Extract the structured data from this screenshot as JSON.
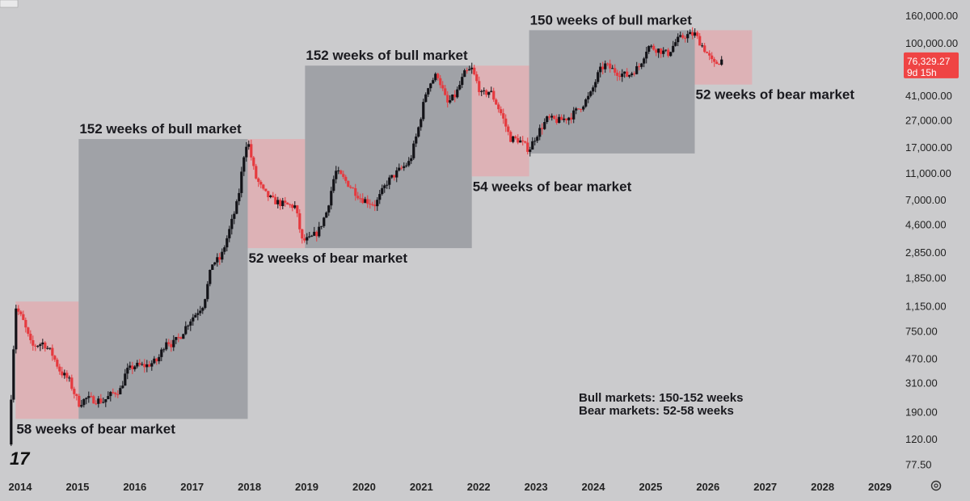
{
  "chart_data": {
    "type": "candlestick",
    "title": "",
    "xlabel": "",
    "ylabel": "",
    "scale": "log",
    "x_range": [
      2014.0,
      2029.8
    ],
    "y_range": [
      70,
      160000
    ],
    "x_ticks": [
      "2014",
      "2015",
      "2016",
      "2017",
      "2018",
      "2019",
      "2020",
      "2021",
      "2022",
      "2023",
      "2024",
      "2025",
      "2026",
      "2027",
      "2028",
      "2029"
    ],
    "y_ticks": [
      {
        "label": "160,000.00",
        "value": 160000
      },
      {
        "label": "100,000.00",
        "value": 100000
      },
      {
        "label": "41,000.00",
        "value": 41000
      },
      {
        "label": "27,000.00",
        "value": 27000
      },
      {
        "label": "17,000.00",
        "value": 17000
      },
      {
        "label": "11,000.00",
        "value": 11000
      },
      {
        "label": "7,000.00",
        "value": 7000
      },
      {
        "label": "4,600.00",
        "value": 4600
      },
      {
        "label": "2,850.00",
        "value": 2850
      },
      {
        "label": "1,850.00",
        "value": 1850
      },
      {
        "label": "1,150.00",
        "value": 1150
      },
      {
        "label": "750.00",
        "value": 750
      },
      {
        "label": "470.00",
        "value": 470
      },
      {
        "label": "310.00",
        "value": 310
      },
      {
        "label": "190.00",
        "value": 190
      },
      {
        "label": "120.00",
        "value": 120
      },
      {
        "label": "77.50",
        "value": 77.5
      }
    ],
    "price_badge": {
      "price": "76,329.27",
      "countdown": "9d 15h",
      "value": 76329.27
    },
    "market_phases": [
      {
        "type": "bear",
        "start": 2013.92,
        "end": 2015.02,
        "low": 170,
        "high": 1250,
        "label": "58 weeks of bear market",
        "label_pos": "below"
      },
      {
        "type": "bull",
        "start": 2015.02,
        "end": 2017.97,
        "low": 170,
        "high": 19800,
        "label": "152 weeks of bull market",
        "label_pos": "above"
      },
      {
        "type": "bear",
        "start": 2017.97,
        "end": 2018.97,
        "low": 3100,
        "high": 19800,
        "label": "52 weeks of bear market",
        "label_pos": "below"
      },
      {
        "type": "bull",
        "start": 2018.97,
        "end": 2021.88,
        "low": 3100,
        "high": 69000,
        "label": "152 weeks of bull market",
        "label_pos": "above"
      },
      {
        "type": "bear",
        "start": 2021.88,
        "end": 2022.88,
        "low": 10500,
        "high": 69000,
        "label": "54 weeks of bear market",
        "label_pos": "below"
      },
      {
        "type": "bull",
        "start": 2022.88,
        "end": 2025.77,
        "low": 15500,
        "high": 126000,
        "label": "150 weeks of bull market",
        "label_pos": "above"
      },
      {
        "type": "bear",
        "start": 2025.77,
        "end": 2026.77,
        "low": 50000,
        "high": 126000,
        "label": "52 weeks of bear market",
        "label_pos": "below"
      }
    ],
    "price_path": [
      [
        2013.8,
        110
      ],
      [
        2013.92,
        1150
      ],
      [
        2014.05,
        900
      ],
      [
        2014.2,
        580
      ],
      [
        2014.4,
        620
      ],
      [
        2014.55,
        520
      ],
      [
        2014.7,
        380
      ],
      [
        2014.85,
        330
      ],
      [
        2015.02,
        220
      ],
      [
        2015.15,
        240
      ],
      [
        2015.3,
        235
      ],
      [
        2015.45,
        230
      ],
      [
        2015.6,
        260
      ],
      [
        2015.75,
        280
      ],
      [
        2015.85,
        380
      ],
      [
        2016.0,
        420
      ],
      [
        2016.2,
        420
      ],
      [
        2016.4,
        460
      ],
      [
        2016.55,
        650
      ],
      [
        2016.65,
        600
      ],
      [
        2016.8,
        700
      ],
      [
        2016.95,
        900
      ],
      [
        2017.05,
        1000
      ],
      [
        2017.2,
        1200
      ],
      [
        2017.35,
        2400
      ],
      [
        2017.5,
        2600
      ],
      [
        2017.65,
        4200
      ],
      [
        2017.8,
        7000
      ],
      [
        2017.92,
        17000
      ],
      [
        2017.97,
        19500
      ],
      [
        2018.1,
        10500
      ],
      [
        2018.25,
        8000
      ],
      [
        2018.4,
        7000
      ],
      [
        2018.6,
        6500
      ],
      [
        2018.8,
        6300
      ],
      [
        2018.92,
        3500
      ],
      [
        2019.05,
        3600
      ],
      [
        2019.2,
        4100
      ],
      [
        2019.35,
        5800
      ],
      [
        2019.5,
        11500
      ],
      [
        2019.65,
        10000
      ],
      [
        2019.8,
        8500
      ],
      [
        2019.95,
        7200
      ],
      [
        2020.2,
        6500
      ],
      [
        2020.4,
        9500
      ],
      [
        2020.6,
        11500
      ],
      [
        2020.8,
        13500
      ],
      [
        2020.95,
        24000
      ],
      [
        2021.1,
        48000
      ],
      [
        2021.28,
        60000
      ],
      [
        2021.45,
        36000
      ],
      [
        2021.6,
        42000
      ],
      [
        2021.75,
        60000
      ],
      [
        2021.88,
        65000
      ],
      [
        2022.05,
        42000
      ],
      [
        2022.2,
        45000
      ],
      [
        2022.4,
        30000
      ],
      [
        2022.55,
        20000
      ],
      [
        2022.7,
        19500
      ],
      [
        2022.88,
        16500
      ],
      [
        2023.0,
        21000
      ],
      [
        2023.2,
        28000
      ],
      [
        2023.4,
        27000
      ],
      [
        2023.6,
        29000
      ],
      [
        2023.8,
        35000
      ],
      [
        2023.95,
        42000
      ],
      [
        2024.1,
        62000
      ],
      [
        2024.2,
        70000
      ],
      [
        2024.4,
        62000
      ],
      [
        2024.6,
        58000
      ],
      [
        2024.8,
        68000
      ],
      [
        2024.95,
        96000
      ],
      [
        2025.15,
        90000
      ],
      [
        2025.3,
        84000
      ],
      [
        2025.45,
        105000
      ],
      [
        2025.6,
        115000
      ],
      [
        2025.77,
        118000
      ],
      [
        2025.95,
        90000
      ],
      [
        2026.1,
        70000
      ],
      [
        2026.25,
        76329
      ]
    ],
    "notes": [
      "Bull markets: 150-152 weeks",
      "Bear markets: 52-58 weeks"
    ]
  },
  "colors": {
    "background": "#cbcbcd",
    "bull_zone": "#9d9fa4",
    "bear_zone": "#e0aeb1",
    "up_candle": "#131318",
    "down_candle": "#e53a3f",
    "badge": "#ef4444"
  },
  "branding": {
    "logo_text": "17",
    "settings_icon": "gear-icon"
  }
}
